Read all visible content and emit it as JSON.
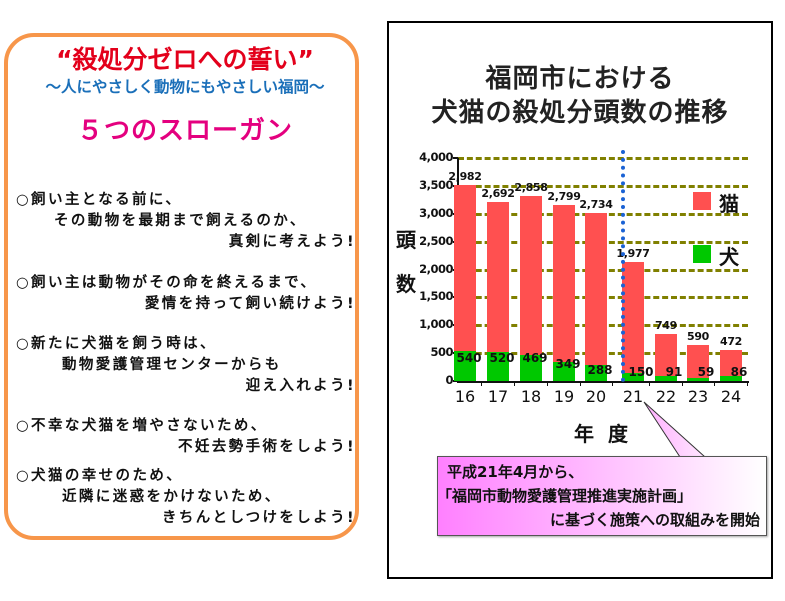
{
  "slogan_panel": {
    "title": "“殺処分ゼロへの誓い”",
    "subtitle": "～人にやさしく動物にもやさしい福岡～",
    "heading": "５つのスローガン",
    "slogans": [
      {
        "lines": [
          "○飼い主となる前に、",
          "その動物を最期まで飼えるのか、",
          "真剣に考えよう!"
        ]
      },
      {
        "lines": [
          "○飼い主は動物がその命を終えるまで、",
          "愛情を持って飼い続けよう!"
        ]
      },
      {
        "lines": [
          "○新たに犬猫を飼う時は、",
          "動物愛護管理センターからも",
          "迎え入れよう!"
        ]
      },
      {
        "lines": [
          "○不幸な犬猫を増やさないため、",
          "不妊去勢手術をしよう!"
        ]
      },
      {
        "lines": [
          "○犬猫の幸せのため、",
          "近隣に迷惑をかけないため、",
          "きちんとしつけをしよう!"
        ]
      }
    ],
    "colors": {
      "border": "#f7964a",
      "title": "#e3001b",
      "subtitle": "#1a6fb9",
      "heading": "#e4007f"
    }
  },
  "chart_panel": {
    "title_line1": "福岡市における",
    "title_line2": "犬猫の殺処分頭数の推移",
    "y_label_chars": [
      "頭",
      "数"
    ],
    "x_label": "年度",
    "legend": [
      {
        "label": "猫",
        "color": "#ff5050"
      },
      {
        "label": "犬",
        "color": "#00c800"
      }
    ],
    "callout": {
      "line1": "平成21年4月から、",
      "line2": "「福岡市動物愛護管理推進実施計画」",
      "line3": "に基づく施策への取組みを開始"
    }
  },
  "chart_data": {
    "type": "bar",
    "stacked": true,
    "title": "福岡市における犬猫の殺処分頭数の推移",
    "xlabel": "年度",
    "ylabel": "頭数",
    "categories": [
      "16",
      "17",
      "18",
      "19",
      "20",
      "21",
      "22",
      "23",
      "24"
    ],
    "series": [
      {
        "name": "犬",
        "color": "#00c800",
        "values": [
          540,
          520,
          469,
          349,
          288,
          150,
          91,
          59,
          86
        ]
      },
      {
        "name": "猫",
        "color": "#ff5050",
        "values": [
          2982,
          2692,
          2858,
          2799,
          2734,
          1977,
          749,
          590,
          472
        ]
      }
    ],
    "value_labels": {
      "cat": [
        "2,982",
        "2,692",
        "2,858",
        "2,799",
        "2,734",
        "1,977",
        "749",
        "590",
        "472"
      ],
      "dog": [
        "540",
        "520",
        "469",
        "349",
        "288",
        "150",
        "91",
        "59",
        "86"
      ]
    },
    "yticks": [
      "0",
      "500",
      "1,000",
      "1,500",
      "2,000",
      "2,500",
      "3,000",
      "3,500",
      "4,000"
    ],
    "ylim": [
      0,
      4000
    ],
    "grid": true,
    "legend_position": "right",
    "annotation": {
      "divider_between": [
        "20",
        "21"
      ],
      "text": "平成21年4月から、「福岡市動物愛護管理推進実施計画」に基づく施策への取組みを開始"
    }
  }
}
